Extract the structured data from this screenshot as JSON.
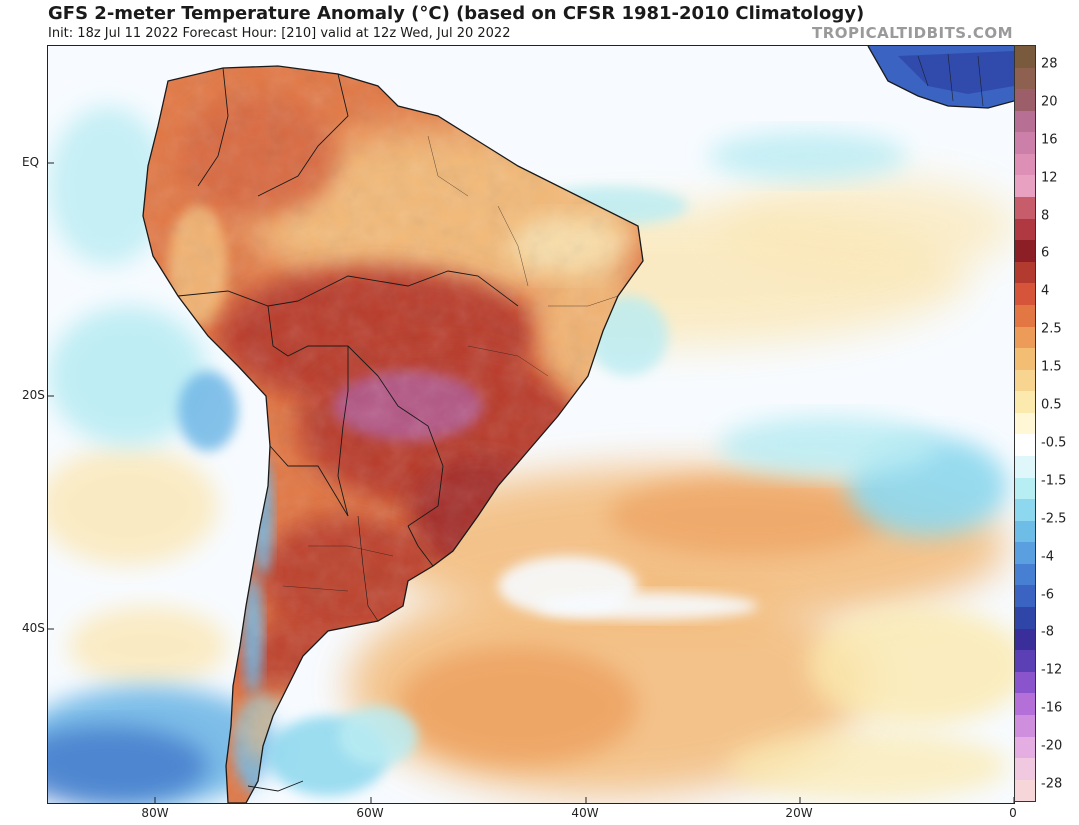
{
  "header": {
    "title": "GFS 2-meter Temperature Anomaly (°C) (based on CFSR 1981-2010 Climatology)",
    "subtitle": "Init: 18z Jul 11 2022   Forecast Hour: [210]   valid at 12z Wed, Jul 20 2022",
    "credit": "TROPICALTIDBITS.COM"
  },
  "map": {
    "lat_labels": [
      "EQ",
      "20S",
      "40S"
    ],
    "lon_labels": [
      "80W",
      "60W",
      "40W",
      "20W",
      "0"
    ],
    "colors": {
      "ocean_neutral": "#f7fbff",
      "warm_light": "#fbe7b6",
      "warm_mid": "#f3b977",
      "warm_strong": "#d9693f",
      "hot": "#b93a2a",
      "very_hot": "#8f2c2f",
      "extreme": "#b35a8f",
      "cool_light": "#b9ecf3",
      "cool_mid": "#6fb7e6",
      "cold": "#3b6fc6",
      "borders": "#1a1a1a"
    }
  },
  "colorbar": {
    "labels": [
      "28",
      "20",
      "16",
      "12",
      "8",
      "6",
      "4",
      "2.5",
      "1.5",
      "0.5",
      "-0.5",
      "-1.5",
      "-2.5",
      "-4",
      "-6",
      "-8",
      "-12",
      "-16",
      "-20",
      "-28"
    ],
    "colors": [
      "#7a5a3c",
      "#8e6050",
      "#9c5f6a",
      "#b76f93",
      "#cc7fa8",
      "#dd8fb5",
      "#e8a1c0",
      "#c75c6a",
      "#b03840",
      "#8c1f26",
      "#b23a2e",
      "#d6553a",
      "#e27744",
      "#ec9b59",
      "#f4bd74",
      "#f7d591",
      "#fbe9ae",
      "#fff7d6",
      "#ffffff",
      "#dff7fb",
      "#b7eef4",
      "#8dd8ee",
      "#6dbde7",
      "#5a9fe0",
      "#477fd3",
      "#3a63c2",
      "#3045a8",
      "#3a2f9a",
      "#5b3fb5",
      "#8a55cc",
      "#b56fd8",
      "#cf8fde",
      "#e4aee3",
      "#f0c8e0",
      "#f6d6d8"
    ]
  }
}
